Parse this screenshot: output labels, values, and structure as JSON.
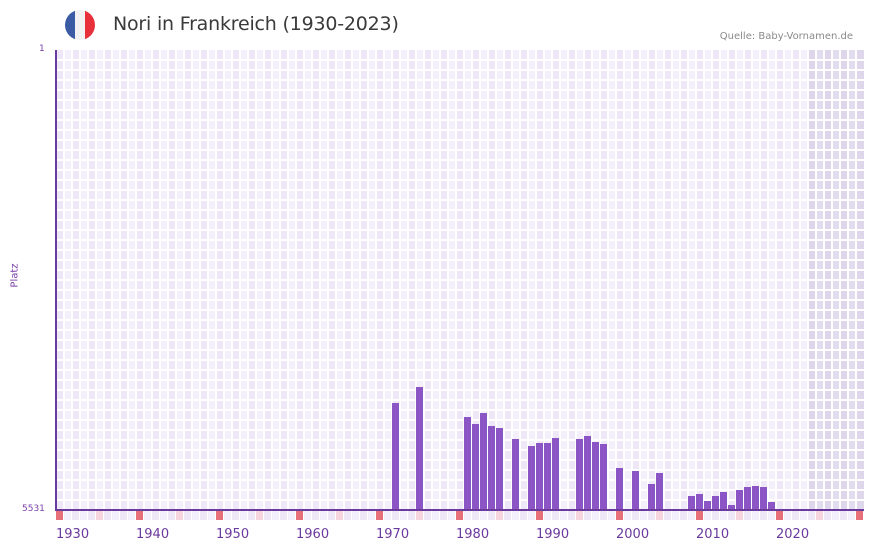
{
  "header": {
    "title": "Nori in Frankreich (1930-2023)",
    "source": "Quelle: Baby-Vornamen.de",
    "flag": {
      "colors": [
        "#3b5ba5",
        "#f2f2f2",
        "#e8303a"
      ]
    }
  },
  "colors": {
    "bar": "#8b55c6",
    "axis": "#6a3a9e",
    "decade_tick": "#e57079",
    "half_decade_tick": "#f6d5de",
    "plot_bg_a": "#f3effb",
    "plot_bg_b": "#ede7f8",
    "future_shade": "#e3deec"
  },
  "chart_data": {
    "type": "bar",
    "title": "Nori in Frankreich (1930-2023)",
    "xlabel": "",
    "ylabel": "Platz",
    "y_inverted": true,
    "ylim": [
      5531,
      1
    ],
    "y_ticks": [
      "1",
      "5531"
    ],
    "xlim": [
      1930,
      2030
    ],
    "x_ticks": [
      "1930",
      "1940",
      "1950",
      "1960",
      "1970",
      "1980",
      "1990",
      "2000",
      "2010",
      "2020"
    ],
    "grid": true,
    "future_shaded_from": 2024,
    "categories": [
      1972,
      1975,
      1981,
      1982,
      1983,
      1984,
      1985,
      1987,
      1989,
      1990,
      1991,
      1992,
      1995,
      1996,
      1997,
      1998,
      2000,
      2002,
      2004,
      2005,
      2009,
      2010,
      2011,
      2012,
      2013,
      2014,
      2015,
      2016,
      2017,
      2018,
      2019
    ],
    "values": [
      4240,
      4050,
      4410,
      4500,
      4370,
      4520,
      4540,
      4680,
      4760,
      4730,
      4720,
      4660,
      4680,
      4640,
      4710,
      4740,
      5030,
      5060,
      5220,
      5090,
      5360,
      5340,
      5420,
      5360,
      5320,
      5470,
      5290,
      5260,
      5240,
      5260,
      5440
    ],
    "source": "Quelle: Baby-Vornamen.de"
  }
}
